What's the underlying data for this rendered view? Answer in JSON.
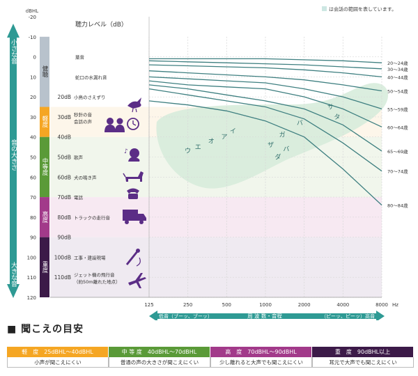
{
  "chart_data": {
    "type": "line",
    "title": "聴力レベル（dB）",
    "note": "は会話の範囲を表しています。",
    "y_unit": "dBHL",
    "x_unit": "Hz",
    "x_ticks": [
      125,
      250,
      500,
      1000,
      2000,
      4000,
      8000
    ],
    "y_ticks": [
      -20,
      -10,
      0,
      10,
      20,
      30,
      40,
      50,
      60,
      70,
      80,
      90,
      100,
      110,
      120
    ],
    "ylim": [
      -20,
      120
    ],
    "y_axis_label_top": "小さな音",
    "y_axis_label_mid": "音の大きさ",
    "y_axis_label_bottom": "大きな音",
    "x_axis_label": "周 波 数・音程",
    "x_axis_low": "低音（ブーッ、ブーッ）",
    "x_axis_high": "（ピーッ、ピーッ）高音",
    "series": [
      {
        "name": "20～24歳",
        "x": [
          125,
          250,
          500,
          1000,
          2000,
          4000,
          8000
        ],
        "y": [
          1,
          1,
          1,
          1,
          1.5,
          2,
          3
        ]
      },
      {
        "name": "30～34歳",
        "x": [
          125,
          250,
          500,
          1000,
          2000,
          4000,
          8000
        ],
        "y": [
          2,
          2.5,
          3,
          3.5,
          4,
          5,
          6
        ]
      },
      {
        "name": "40～44歳",
        "x": [
          125,
          250,
          500,
          1000,
          2000,
          4000,
          8000
        ],
        "y": [
          4,
          4.5,
          5,
          5.5,
          6.5,
          8,
          10
        ]
      },
      {
        "name": "50～54歳",
        "x": [
          125,
          250,
          500,
          1000,
          2000,
          4000,
          8000
        ],
        "y": [
          7,
          8,
          9,
          10,
          11.5,
          14,
          17
        ]
      },
      {
        "name": "55～59歳",
        "x": [
          125,
          250,
          500,
          1000,
          2000,
          4000,
          8000
        ],
        "y": [
          10,
          11,
          12,
          13,
          16,
          20,
          26
        ]
      },
      {
        "name": "60～64歳",
        "x": [
          125,
          250,
          500,
          1000,
          2000,
          4000,
          8000
        ],
        "y": [
          12,
          14,
          15,
          16,
          20,
          26,
          35
        ]
      },
      {
        "name": "65～69歳",
        "x": [
          125,
          250,
          500,
          1000,
          2000,
          4000,
          8000
        ],
        "y": [
          14,
          16,
          19,
          22,
          26,
          34,
          47
        ]
      },
      {
        "name": "70～74歳",
        "x": [
          125,
          250,
          500,
          1000,
          2000,
          4000,
          8000
        ],
        "y": [
          16,
          19,
          22,
          25,
          31,
          43,
          57
        ]
      },
      {
        "name": "80～84歳",
        "x": [
          125,
          250,
          500,
          1000,
          2000,
          4000,
          8000
        ],
        "y": [
          22,
          24,
          27,
          32,
          40,
          56,
          74
        ]
      }
    ],
    "phonemes": [
      {
        "label": "ウ",
        "x": 250,
        "y": 48
      },
      {
        "label": "エ",
        "x": 300,
        "y": 46
      },
      {
        "label": "オ",
        "x": 380,
        "y": 43
      },
      {
        "label": "イ",
        "x": 560,
        "y": 38
      },
      {
        "label": "ア",
        "x": 480,
        "y": 41
      },
      {
        "label": "ザ",
        "x": 1100,
        "y": 45
      },
      {
        "label": "ガ",
        "x": 1350,
        "y": 40
      },
      {
        "label": "ダ",
        "x": 1250,
        "y": 51
      },
      {
        "label": "バ",
        "x": 1450,
        "y": 47
      },
      {
        "label": "バ",
        "x": 1850,
        "y": 34
      },
      {
        "label": "サ",
        "x": 3200,
        "y": 26
      },
      {
        "label": "タ",
        "x": 3600,
        "y": 31
      }
    ],
    "bands": [
      {
        "label": "健聴",
        "from": -10,
        "to": 25,
        "color": "#b8c2cc"
      },
      {
        "label": "軽度",
        "from": 25,
        "to": 40,
        "color": "#f5a623"
      },
      {
        "label": "中等度",
        "from": 40,
        "to": 70,
        "color": "#5a9a38"
      },
      {
        "label": "高度",
        "from": 70,
        "to": 90,
        "color": "#a23a8a"
      },
      {
        "label": "重度",
        "from": 90,
        "to": 120,
        "color": "#3c1a48"
      }
    ],
    "sound_examples": [
      {
        "db": "",
        "label": "葉音",
        "y": 0
      },
      {
        "db": "",
        "label": "蛇口の水漏れ音",
        "y": 10
      },
      {
        "db": "20dB",
        "label": "小鳥のさえずり",
        "y": 20
      },
      {
        "db": "30dB",
        "label": "秒針の音",
        "label2": "会話の声",
        "y": 30
      },
      {
        "db": "40dB",
        "label": "",
        "y": 40
      },
      {
        "db": "50dB",
        "label": "歌声",
        "y": 50
      },
      {
        "db": "60dB",
        "label": "犬の鳴き声",
        "y": 60
      },
      {
        "db": "70dB",
        "label": "電話",
        "y": 70
      },
      {
        "db": "80dB",
        "label": "トラックの走行音",
        "y": 80
      },
      {
        "db": "90dB",
        "label": "",
        "y": 90
      },
      {
        "db": "100dB",
        "label": "工事・建設現場",
        "y": 100
      },
      {
        "db": "110dB",
        "label": "ジェット機の飛行音",
        "label2": "（約50m離れた地点）",
        "y": 110
      }
    ]
  },
  "page": {
    "section_title": "■ 聞こえの目安"
  },
  "legend": [
    {
      "head": "軽　度　25dBHL～40dBHL",
      "desc": "小声が聞こえにくい",
      "color": "#f5a623"
    },
    {
      "head": "中 等 度　40dBHL～70dBHL",
      "desc": "普通の声の大きさが聞こえにくい",
      "color": "#5a9a38"
    },
    {
      "head": "高　度　70dBHL～90dBHL",
      "desc": "少し離れると大声でも聞こえにくい",
      "color": "#a23a8a"
    },
    {
      "head": "重　度　90dBHL以上",
      "desc": "耳元で大声でも聞こえにくい",
      "color": "#3c1a48"
    }
  ],
  "colors": {
    "curve": "#3e7f80",
    "speech_area": "#d7ecdc",
    "arrow": "#2e9a94",
    "grid": "#d8d8d8"
  },
  "icons": [
    "bird-icon",
    "people-icon",
    "clock-icon",
    "singer-icon",
    "dog-icon",
    "phone-icon",
    "truck-icon",
    "drill-icon",
    "airplane-icon"
  ]
}
